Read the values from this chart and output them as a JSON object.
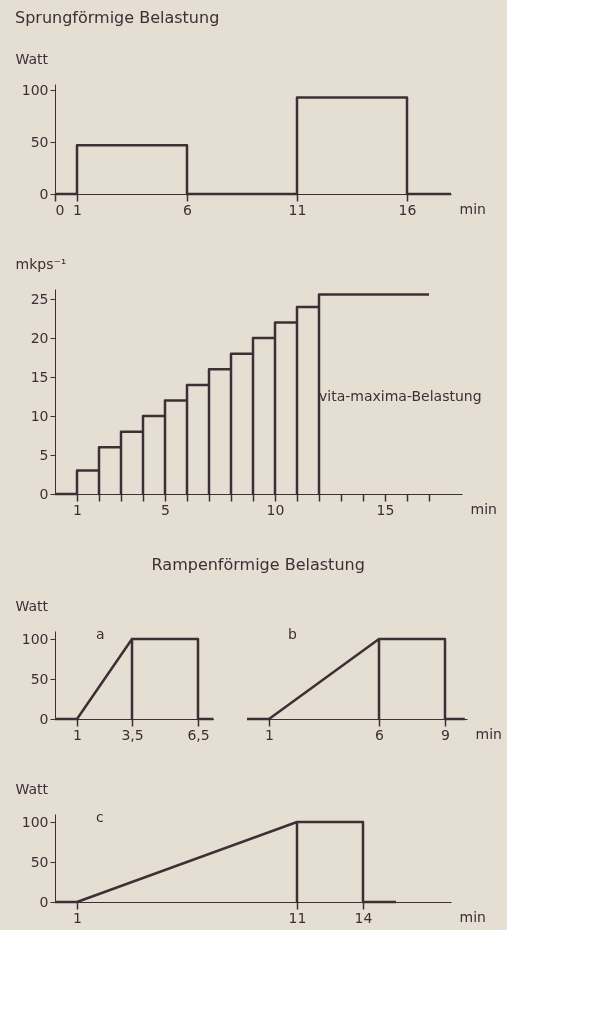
{
  "chart_data": [
    {
      "type": "line",
      "title": "Sprungförmige Belastung",
      "ylabel": "Watt",
      "xlabel": "min",
      "xlim": [
        0,
        18
      ],
      "xticks": [
        0,
        1,
        6,
        11,
        16
      ],
      "ylim": [
        0,
        106
      ],
      "yticks": [
        0,
        50,
        100
      ],
      "grid": false,
      "marker": "none",
      "line_style": "solid",
      "series": [
        {
          "color": "#3b3033",
          "x": [
            0,
            1,
            1,
            6,
            6,
            11,
            11,
            16,
            16,
            18
          ],
          "values": [
            0,
            0,
            47,
            47,
            0,
            0,
            93,
            93,
            0,
            0
          ]
        }
      ]
    },
    {
      "type": "line",
      "ylabel": "mkps⁻¹",
      "xlabel": "min",
      "xlim": [
        0,
        18.5
      ],
      "xticks": [
        1,
        {
          "value": 2,
          "label": null
        },
        {
          "value": 3,
          "label": null
        },
        {
          "value": 4,
          "label": null
        },
        5,
        {
          "value": 6,
          "label": null
        },
        {
          "value": 7,
          "label": null
        },
        {
          "value": 8,
          "label": null
        },
        {
          "value": 9,
          "label": null
        },
        10,
        {
          "value": 11,
          "label": null
        },
        {
          "value": 12,
          "label": null
        },
        {
          "value": 13,
          "label": null
        },
        {
          "value": 14,
          "label": null
        },
        15,
        {
          "value": 16,
          "label": null
        },
        {
          "value": 17,
          "label": null
        }
      ],
      "ylim": [
        0,
        26.3
      ],
      "yticks": [
        0,
        5,
        10,
        15,
        20,
        25
      ],
      "grid": false,
      "marker": "none",
      "line_style": "solid",
      "annotations": [
        {
          "text": "vita-maxima-Belastung",
          "x": 12,
          "y": 12.5
        }
      ],
      "series": [
        {
          "color": "#3b3033",
          "x": [
            0,
            1,
            1,
            2,
            2,
            2,
            3,
            3,
            3,
            4,
            4,
            4,
            5,
            5,
            5,
            6,
            6,
            6,
            7,
            7,
            7,
            8,
            8,
            8,
            9,
            9,
            9,
            10,
            10,
            10,
            11,
            11,
            11,
            12,
            12,
            12,
            17
          ],
          "values": [
            0,
            0,
            3,
            3,
            0,
            6,
            6,
            0,
            8,
            8,
            0,
            10,
            10,
            0,
            12,
            12,
            0,
            14,
            14,
            0,
            16,
            16,
            0,
            18,
            18,
            0,
            20,
            20,
            0,
            22,
            22,
            0,
            24,
            24,
            0,
            25.6,
            25.6
          ]
        }
      ]
    },
    {
      "type": "line",
      "title": "Rampenförmige Belastung",
      "ylabel": "Watt",
      "xlim": [
        0,
        7.2
      ],
      "xticks": [
        1,
        {
          "value": 3.5,
          "label": "3,5"
        },
        {
          "value": 6.5,
          "label": "6,5"
        }
      ],
      "ylim": [
        0,
        110
      ],
      "yticks": [
        0,
        50,
        100
      ],
      "grid": false,
      "marker": "none",
      "line_style": "solid",
      "annotations": [
        "a"
      ],
      "series": [
        {
          "color": "#3b3033",
          "x": [
            0,
            1,
            3.5,
            3.5,
            3.5,
            6.5,
            6.5,
            7.2
          ],
          "values": [
            0,
            0,
            100,
            0,
            100,
            100,
            0,
            0
          ]
        }
      ]
    },
    {
      "type": "line",
      "xlabel": "min",
      "xlim": [
        0,
        10
      ],
      "xticks": [
        1,
        6,
        9
      ],
      "ylim": [
        0,
        100
      ],
      "yticks": [
        0,
        50,
        100
      ],
      "tick_labels": "x",
      "grid": false,
      "marker": "none",
      "line_style": "solid",
      "annotations": [
        "b"
      ],
      "series": [
        {
          "color": "#3b3033",
          "x": [
            0,
            1,
            6,
            6,
            6,
            9,
            9,
            9.9
          ],
          "values": [
            0,
            0,
            100,
            0,
            100,
            100,
            0,
            0
          ]
        }
      ]
    },
    {
      "type": "line",
      "ylabel": "Watt",
      "xlabel": "min",
      "xlim": [
        0,
        18
      ],
      "xticks": [
        1,
        11,
        14
      ],
      "ylim": [
        0,
        110
      ],
      "yticks": [
        0,
        50,
        100
      ],
      "grid": false,
      "marker": "none",
      "line_style": "solid",
      "annotations": [
        "c"
      ],
      "series": [
        {
          "color": "#3b3033",
          "x": [
            0,
            1,
            11,
            11,
            11,
            14,
            14,
            15.5
          ],
          "values": [
            0,
            0,
            100,
            0,
            100,
            100,
            0,
            0
          ]
        }
      ]
    }
  ]
}
